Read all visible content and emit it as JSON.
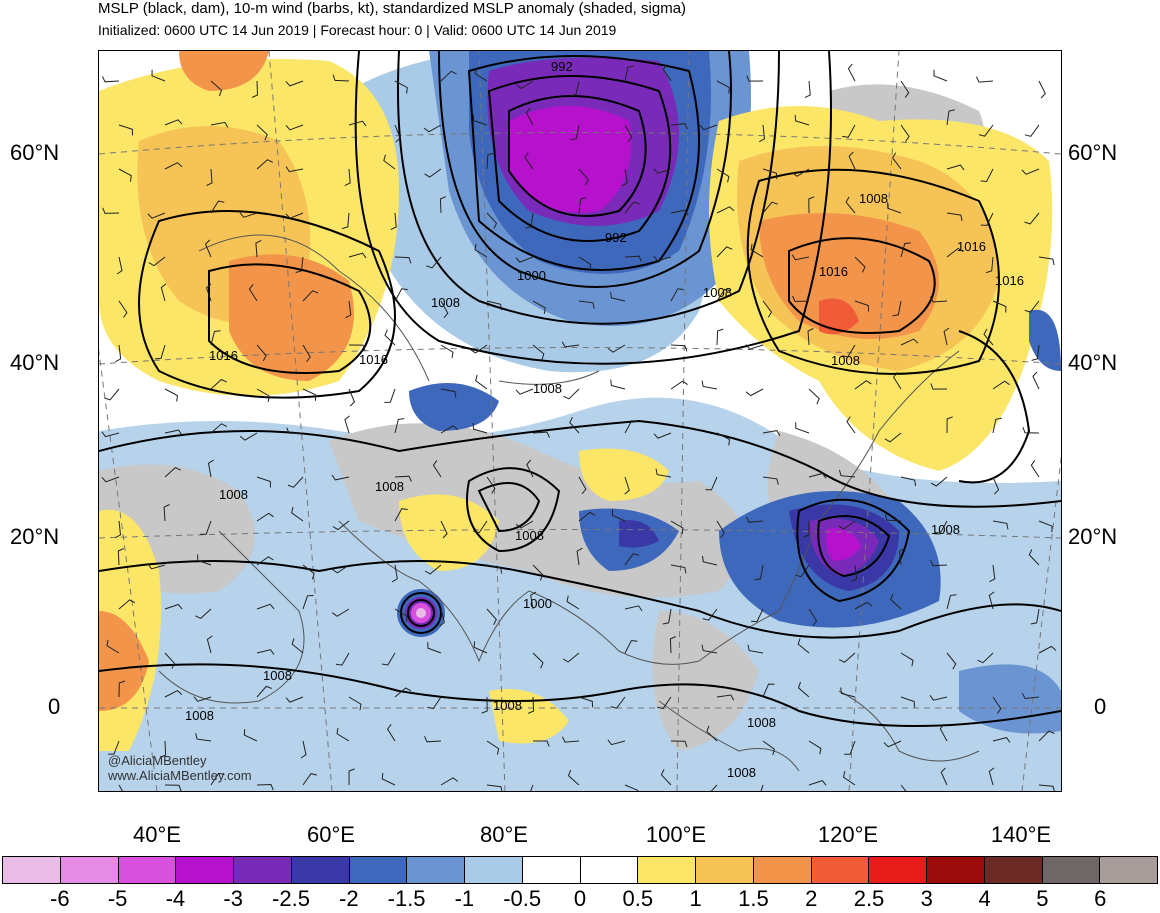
{
  "header": {
    "title": "MSLP (black, dam), 10-m wind (barbs, kt), standardized MSLP anomaly (shaded, sigma)",
    "subtitle": "Initialized: 0600 UTC 14 Jun 2019 | Forecast hour: 0 | Valid: 0600 UTC 14 Jun 2019"
  },
  "axes": {
    "lat_left": [
      "60°N",
      "40°N",
      "20°N",
      "0"
    ],
    "lat_right": [
      "60°N",
      "40°N",
      "20°N",
      "0"
    ],
    "lon": [
      "40°E",
      "60°E",
      "80°E",
      "100°E",
      "120°E",
      "140°E"
    ]
  },
  "credit": {
    "handle": "@AliciaMBentley",
    "site": "www.AliciaMBentley.com"
  },
  "isobar_labels": [
    "992",
    "992",
    "1000",
    "1000",
    "1008",
    "1008",
    "1008",
    "1008",
    "1008",
    "1008",
    "1008",
    "1008",
    "1008",
    "1008",
    "1008",
    "1016",
    "1016",
    "1016",
    "1016",
    "1016"
  ],
  "colorbar": {
    "colors": [
      "#e9bce8",
      "#e58be6",
      "#d850de",
      "#b612ce",
      "#7a2ab8",
      "#3a37a6",
      "#3e68bc",
      "#6b95d2",
      "#a9cbe8",
      "#ffffff",
      "#ffffff",
      "#fbe667",
      "#f6c456",
      "#f3944b",
      "#f05c38",
      "#e81c1a",
      "#9b0b0b",
      "#6c2a25",
      "#6f6766",
      "#a89d9b"
    ],
    "labels": [
      "-6",
      "-5",
      "-4",
      "-3",
      "-2.5",
      "-2",
      "-1.5",
      "-1",
      "-0.5",
      "0",
      "0.5",
      "1",
      "1.5",
      "2",
      "2.5",
      "3",
      "4",
      "5",
      "6"
    ]
  }
}
